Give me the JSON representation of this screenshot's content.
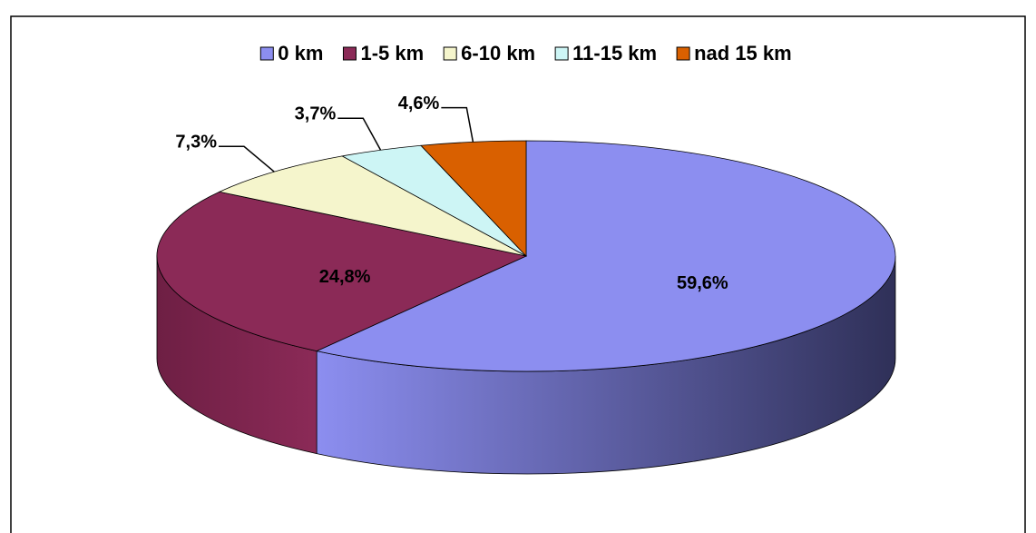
{
  "chart_data": {
    "type": "pie",
    "categories": [
      "0 km",
      "1-5 km",
      "6-10 km",
      "11-15 km",
      "nad 15 km"
    ],
    "values": [
      59.6,
      24.8,
      7.3,
      3.7,
      4.6
    ],
    "value_labels": [
      "59,6%",
      "24,8%",
      "7,3%",
      "3,7%",
      "4,6%"
    ],
    "colors": [
      "#8c8ef0",
      "#8b2a57",
      "#f5f5cc",
      "#cdf5f5",
      "#d96000"
    ],
    "legend": "top",
    "style": "3d"
  }
}
